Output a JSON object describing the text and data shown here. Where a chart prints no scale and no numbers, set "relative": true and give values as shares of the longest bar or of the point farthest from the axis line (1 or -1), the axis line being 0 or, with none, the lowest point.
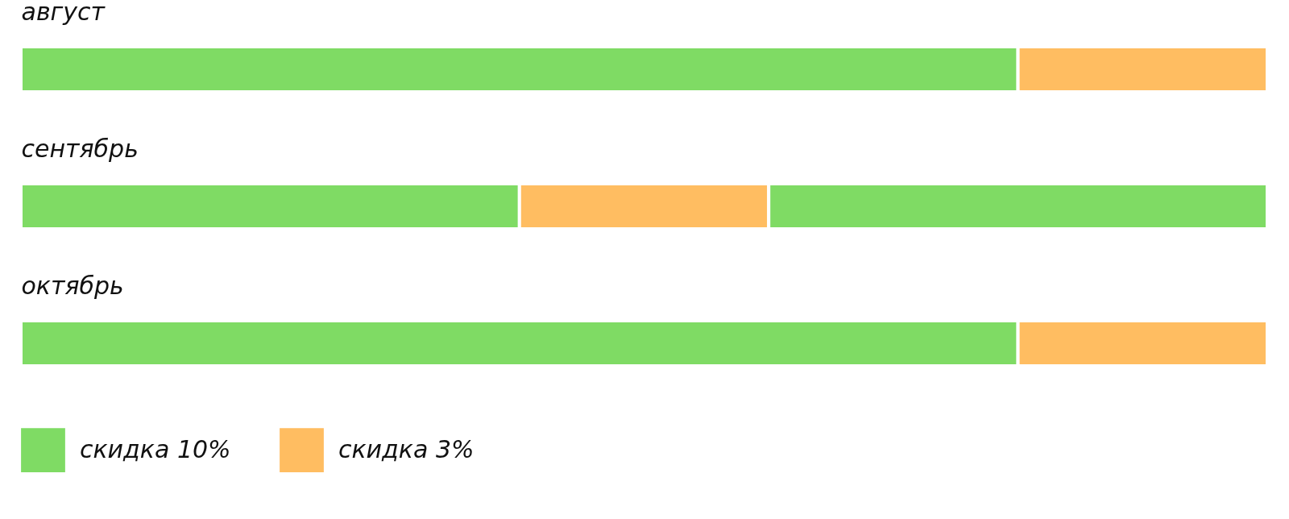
{
  "chart_data": {
    "type": "bar",
    "orientation": "horizontal",
    "stacked": true,
    "relative": true,
    "categories": [
      "август",
      "сентябрь",
      "октябрь"
    ],
    "series": [
      {
        "name": "скидка 10%",
        "color": "#7fdb64",
        "values": [
          0.8,
          0.4,
          0.8
        ]
      },
      {
        "name": "скидка 3%",
        "color": "#ffbd61",
        "values": [
          0.2,
          0.2,
          0.2
        ]
      },
      {
        "color": "#7fdb64",
        "values": [
          null,
          0.4,
          null
        ]
      }
    ],
    "legend": "bottom"
  }
}
